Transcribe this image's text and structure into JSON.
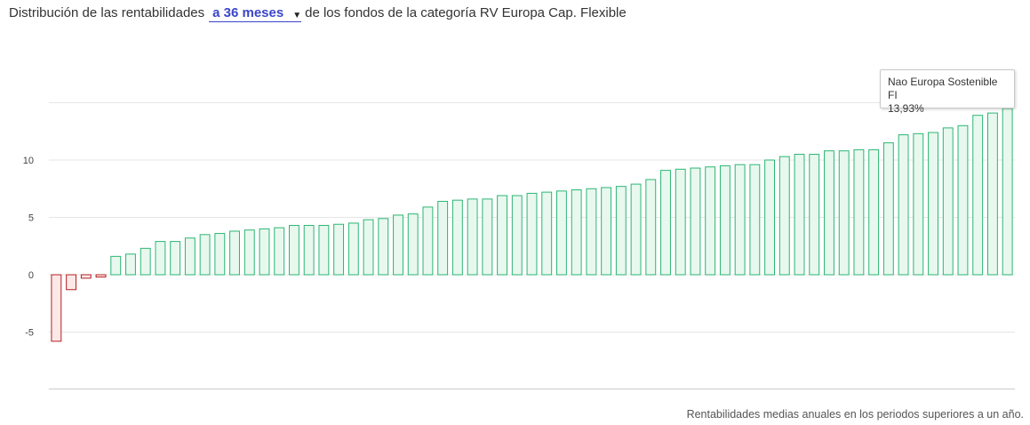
{
  "header": {
    "prefix": "Distribución de las rentabilidades",
    "period_selected": "a 36 meses",
    "suffix": "de los fondos de la categoría RV Europa Cap. Flexible"
  },
  "footnote": "Rentabilidades medias anuales en los periodos superiores a un año.",
  "tooltip": {
    "name": "Nao Europa Sostenible FI",
    "value": "13,93%"
  },
  "colors": {
    "positive_fill": "#e8f8ee",
    "positive_stroke": "#2bb673",
    "negative_fill": "#fde8e8",
    "negative_stroke": "#b21f1f",
    "grid": "#e6e6e6",
    "baseline": "#cccccc"
  },
  "chart_data": {
    "type": "bar",
    "ylim": [
      -10,
      15
    ],
    "yticks": [
      -5,
      0,
      5,
      10
    ],
    "ytick_labels": [
      "-5",
      "0",
      "5",
      "10"
    ],
    "values": [
      -5.8,
      -1.3,
      -0.3,
      -0.2,
      1.6,
      1.8,
      2.3,
      2.9,
      2.9,
      3.2,
      3.5,
      3.6,
      3.8,
      3.9,
      4.0,
      4.1,
      4.3,
      4.3,
      4.3,
      4.4,
      4.5,
      4.8,
      4.9,
      5.2,
      5.3,
      5.9,
      6.4,
      6.5,
      6.6,
      6.6,
      6.9,
      6.9,
      7.1,
      7.2,
      7.3,
      7.4,
      7.5,
      7.6,
      7.7,
      7.9,
      8.3,
      9.1,
      9.2,
      9.3,
      9.4,
      9.5,
      9.6,
      9.6,
      10.0,
      10.3,
      10.5,
      10.5,
      10.8,
      10.8,
      10.9,
      10.9,
      11.5,
      12.2,
      12.3,
      12.4,
      12.8,
      13.0,
      13.9,
      14.1,
      14.5
    ],
    "grid": true,
    "highlight_index": 62
  }
}
